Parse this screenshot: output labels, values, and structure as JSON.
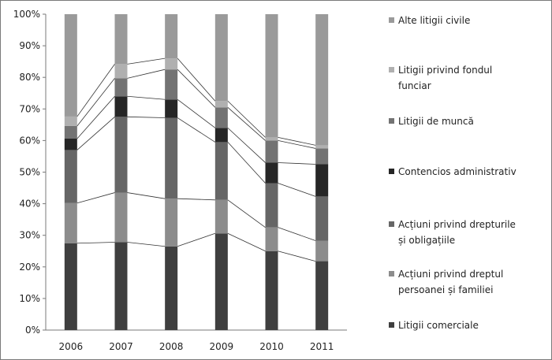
{
  "chart_data": {
    "type": "bar",
    "stacked": true,
    "percent_stacked": true,
    "categories": [
      "2006",
      "2007",
      "2008",
      "2009",
      "2010",
      "2011"
    ],
    "y_ticks": [
      "0%",
      "10%",
      "20%",
      "30%",
      "40%",
      "50%",
      "60%",
      "70%",
      "80%",
      "90%",
      "100%"
    ],
    "ylim": [
      0,
      100
    ],
    "grid": false,
    "series_lines": true,
    "legend_position": "right",
    "series": [
      {
        "name": "Litigii comerciale",
        "color": "#3f3f3f",
        "values": [
          27.5,
          27.8,
          26.5,
          30.6,
          25.0,
          21.8
        ]
      },
      {
        "name": "Acțiuni  privind dreptul persoanei și familiei",
        "color": "#8c8c8c",
        "values": [
          12.7,
          15.7,
          15.1,
          10.6,
          7.5,
          6.5
        ]
      },
      {
        "name": "Acțiuni privind drepturile și obligațiile",
        "color": "#666666",
        "values": [
          16.8,
          24.0,
          25.6,
          18.3,
          14.0,
          14.0
        ]
      },
      {
        "name": "Contencios administrativ",
        "color": "#262626",
        "values": [
          3.6,
          6.5,
          5.8,
          4.5,
          6.5,
          10.2
        ]
      },
      {
        "name": "Litigii de muncă",
        "color": "#737373",
        "values": [
          4.0,
          5.7,
          9.5,
          6.5,
          7.0,
          5.0
        ]
      },
      {
        "name": "Litigii privind fondul funciar",
        "color": "#b0b0b0",
        "values": [
          3.0,
          4.5,
          3.5,
          2.0,
          1.0,
          1.0
        ]
      },
      {
        "name": "Alte litigii civile",
        "color": "#9a9a9a",
        "values": [
          32.4,
          15.8,
          14.0,
          27.5,
          39.0,
          41.5
        ]
      }
    ]
  }
}
